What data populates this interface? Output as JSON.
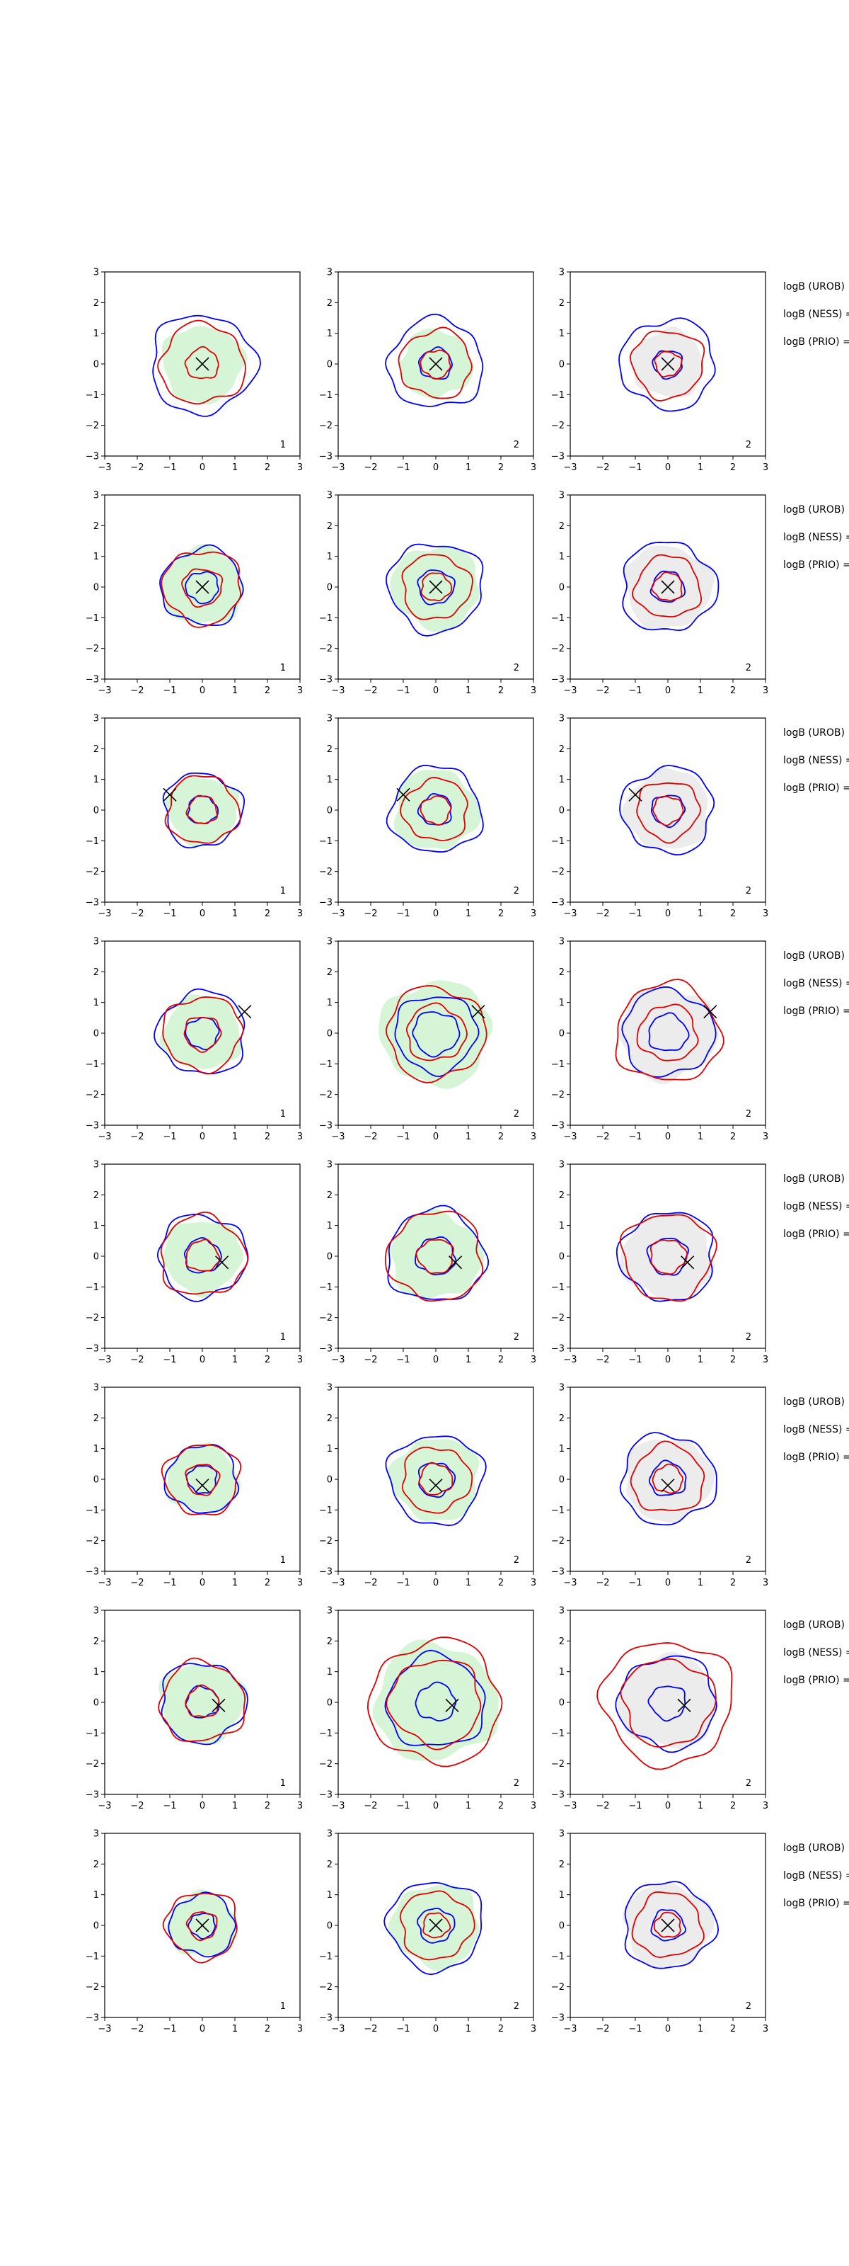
{
  "chart_data": {
    "type": "contour",
    "title": "",
    "xlabel": "",
    "ylabel": "",
    "xlim": [
      -3,
      3
    ],
    "ylim": [
      -3,
      3
    ],
    "xticks": [
      -3,
      -2,
      -1,
      0,
      1,
      2,
      3
    ],
    "yticks": [
      -3,
      -2,
      -1,
      0,
      1,
      2,
      3
    ],
    "grid": false,
    "legend": "none",
    "colors": {
      "blue": "#0000ff",
      "red": "#e00000",
      "green_fill": "#d6f5d6",
      "grey_fill": "#ececec",
      "marker": "#000000"
    },
    "side_text": [
      "logB (UROB)",
      "logB (NESS) =",
      "logB (PRIO) ="
    ],
    "panel_labels": [
      "1",
      "2",
      "2"
    ],
    "rows": [
      {
        "marker": [
          0,
          0
        ],
        "panels": [
          {
            "label": "1",
            "fill": "green",
            "fill_r": 1.25,
            "blue": [
              1.6
            ],
            "red": [
              1.3,
              0.5
            ]
          },
          {
            "label": "2",
            "fill": "green",
            "fill_r": 1.1,
            "blue": [
              1.45,
              0.5
            ],
            "red": [
              1.1,
              0.45
            ]
          },
          {
            "label": "2",
            "fill": "grey",
            "fill_r": 1.1,
            "blue": [
              1.45,
              0.45
            ],
            "red": [
              1.1,
              0.4
            ]
          }
        ]
      },
      {
        "marker": [
          0,
          0
        ],
        "panels": [
          {
            "label": "1",
            "fill": "green",
            "fill_r": 1.25,
            "blue": [
              1.25,
              0.5
            ],
            "red": [
              1.2,
              0.6
            ]
          },
          {
            "label": "2",
            "fill": "green",
            "fill_r": 1.35,
            "blue": [
              1.45,
              0.55
            ],
            "red": [
              1.05,
              0.45
            ]
          },
          {
            "label": "2",
            "fill": "grey",
            "fill_r": 1.35,
            "blue": [
              1.45,
              0.5
            ],
            "red": [
              1.0,
              0.45
            ]
          }
        ]
      },
      {
        "marker": [
          -1.0,
          0.5
        ],
        "panels": [
          {
            "label": "1",
            "fill": "green",
            "fill_r": 1.1,
            "blue": [
              1.2,
              0.45
            ],
            "red": [
              1.1,
              0.45
            ]
          },
          {
            "label": "2",
            "fill": "green",
            "fill_r": 1.3,
            "blue": [
              1.4,
              0.5
            ],
            "red": [
              1.0,
              0.45
            ]
          },
          {
            "label": "2",
            "fill": "grey",
            "fill_r": 1.3,
            "blue": [
              1.4,
              0.5
            ],
            "red": [
              0.95,
              0.45
            ]
          }
        ]
      },
      {
        "marker": [
          1.3,
          0.7
        ],
        "panels": [
          {
            "label": "1",
            "fill": "green",
            "fill_r": 1.2,
            "blue": [
              1.35,
              0.5
            ],
            "red": [
              1.2,
              0.55
            ]
          },
          {
            "label": "2",
            "fill": "green",
            "fill_r": 1.7,
            "blue": [
              1.25,
              0.7
            ],
            "red": [
              1.5,
              0.9
            ]
          },
          {
            "label": "2",
            "fill": "grey",
            "fill_r": 1.5,
            "blue": [
              1.4,
              0.6
            ],
            "red": [
              1.6,
              0.9
            ]
          }
        ]
      },
      {
        "marker": [
          0.6,
          -0.2
        ],
        "panels": [
          {
            "label": "1",
            "fill": "green",
            "fill_r": 1.2,
            "blue": [
              1.35,
              0.55
            ],
            "red": [
              1.3,
              0.5
            ]
          },
          {
            "label": "2",
            "fill": "green",
            "fill_r": 1.4,
            "blue": [
              1.5,
              0.6
            ],
            "red": [
              1.45,
              0.55
            ]
          },
          {
            "label": "2",
            "fill": "grey",
            "fill_r": 1.4,
            "blue": [
              1.45,
              0.6
            ],
            "red": [
              1.4,
              0.55
            ]
          }
        ]
      },
      {
        "marker": [
          0,
          -0.2
        ],
        "panels": [
          {
            "label": "1",
            "fill": "green",
            "fill_r": 1.1,
            "blue": [
              1.1,
              0.45
            ],
            "red": [
              1.15,
              0.5
            ]
          },
          {
            "label": "2",
            "fill": "green",
            "fill_r": 1.35,
            "blue": [
              1.45,
              0.55
            ],
            "red": [
              1.05,
              0.5
            ]
          },
          {
            "label": "2",
            "fill": "grey",
            "fill_r": 1.35,
            "blue": [
              1.45,
              0.55
            ],
            "red": [
              1.1,
              0.45
            ]
          }
        ]
      },
      {
        "marker": [
          0.5,
          -0.1
        ],
        "panels": [
          {
            "label": "1",
            "fill": "green",
            "fill_r": 1.3,
            "blue": [
              1.3,
              0.5
            ],
            "red": [
              1.3,
              0.5
            ]
          },
          {
            "label": "2",
            "fill": "green",
            "fill_r": 1.9,
            "blue": [
              1.5,
              0.6
            ],
            "red": [
              2.0,
              1.4
            ]
          },
          {
            "label": "2",
            "fill": "grey",
            "fill_r": 1.5,
            "blue": [
              1.5,
              0.55
            ],
            "red": [
              2.0,
              1.4
            ]
          }
        ]
      },
      {
        "marker": [
          0,
          0
        ],
        "panels": [
          {
            "label": "1",
            "fill": "green",
            "fill_r": 1.05,
            "blue": [
              1.0,
              0.4
            ],
            "red": [
              1.1,
              0.45
            ]
          },
          {
            "label": "2",
            "fill": "green",
            "fill_r": 1.35,
            "blue": [
              1.45,
              0.55
            ],
            "red": [
              1.1,
              0.4
            ]
          },
          {
            "label": "2",
            "fill": "grey",
            "fill_r": 1.35,
            "blue": [
              1.4,
              0.5
            ],
            "red": [
              1.05,
              0.4
            ]
          }
        ]
      }
    ]
  }
}
